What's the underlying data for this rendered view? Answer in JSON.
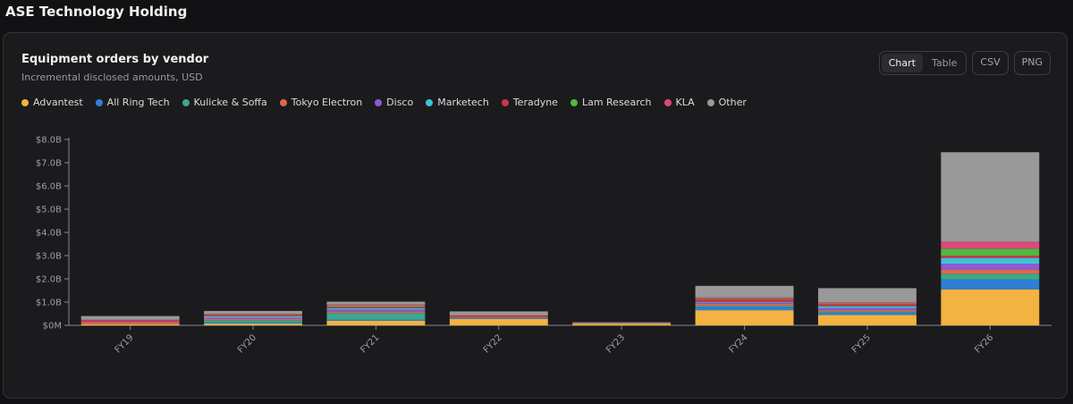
{
  "page": {
    "title": "ASE Technology Holding"
  },
  "card": {
    "title": "Equipment orders by vendor",
    "subtitle": "Incremental disclosed amounts, USD"
  },
  "toolbar": {
    "chart_label": "Chart",
    "table_label": "Table",
    "csv_label": "CSV",
    "png_label": "PNG"
  },
  "chart_data": {
    "type": "bar",
    "stacked": true,
    "title": "Equipment orders by vendor",
    "subtitle": "Incremental disclosed amounts, USD",
    "xlabel": "",
    "ylabel": "",
    "categories": [
      "FY19",
      "FY20",
      "FY21",
      "FY22",
      "FY23",
      "FY24",
      "FY25",
      "FY26"
    ],
    "ylim": [
      0,
      8.0
    ],
    "y_ticks": [
      0,
      1,
      2,
      3,
      4,
      5,
      6,
      7,
      8
    ],
    "y_tick_labels": [
      "$0M",
      "$1.0B",
      "$2.0B",
      "$3.0B",
      "$4.0B",
      "$5.0B",
      "$6.0B",
      "$7.0B",
      "$8.0B"
    ],
    "legend_position": "top-left",
    "grid": false,
    "series": [
      {
        "name": "Advantest",
        "color": "#f4b340",
        "values": [
          0.05,
          0.08,
          0.2,
          0.28,
          0.06,
          0.65,
          0.45,
          1.55
        ]
      },
      {
        "name": "All Ring Tech",
        "color": "#2f7fd6",
        "values": [
          0.0,
          0.04,
          0.05,
          0.02,
          0.0,
          0.15,
          0.1,
          0.42
        ]
      },
      {
        "name": "Kulicke & Soffa",
        "color": "#3aaa8a",
        "values": [
          0.0,
          0.1,
          0.28,
          0.02,
          0.0,
          0.05,
          0.05,
          0.25
        ]
      },
      {
        "name": "Tokyo Electron",
        "color": "#e0664a",
        "values": [
          0.1,
          0.05,
          0.06,
          0.04,
          0.02,
          0.08,
          0.06,
          0.18
        ]
      },
      {
        "name": "Disco",
        "color": "#8e58d6",
        "values": [
          0.02,
          0.06,
          0.1,
          0.02,
          0.0,
          0.05,
          0.08,
          0.25
        ]
      },
      {
        "name": "Marketech",
        "color": "#3fc2d4",
        "values": [
          0.0,
          0.06,
          0.05,
          0.0,
          0.0,
          0.03,
          0.08,
          0.25
        ]
      },
      {
        "name": "Teradyne",
        "color": "#c53a45",
        "values": [
          0.05,
          0.06,
          0.06,
          0.04,
          0.0,
          0.12,
          0.1,
          0.1
        ]
      },
      {
        "name": "Lam Research",
        "color": "#52b83e",
        "values": [
          0.0,
          0.02,
          0.05,
          0.0,
          0.0,
          0.02,
          0.02,
          0.3
        ]
      },
      {
        "name": "KLA",
        "color": "#d94a7a",
        "values": [
          0.02,
          0.03,
          0.05,
          0.02,
          0.0,
          0.05,
          0.05,
          0.3
        ]
      },
      {
        "name": "Other",
        "color": "#999999",
        "values": [
          0.16,
          0.12,
          0.12,
          0.16,
          0.05,
          0.5,
          0.61,
          3.85
        ]
      }
    ]
  }
}
